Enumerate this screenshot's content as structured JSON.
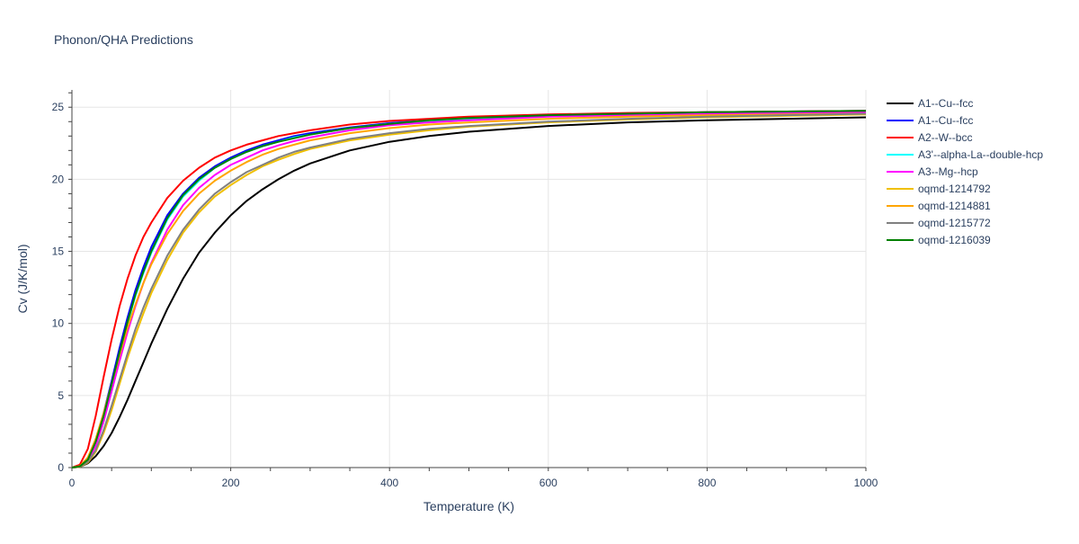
{
  "chart_data": {
    "type": "line",
    "title": "Phonon/QHA Predictions",
    "xlabel": "Temperature (K)",
    "ylabel": "Cv (J/K/mol)",
    "xlim": [
      0,
      1000
    ],
    "ylim": [
      0,
      26.2
    ],
    "x_ticks": [
      0,
      200,
      400,
      600,
      800,
      1000
    ],
    "y_ticks": [
      0,
      5,
      10,
      15,
      20,
      25
    ],
    "grid": true,
    "legend_position": "right",
    "x": [
      0,
      10,
      20,
      30,
      40,
      50,
      60,
      70,
      80,
      90,
      100,
      120,
      140,
      160,
      180,
      200,
      220,
      240,
      260,
      280,
      300,
      350,
      400,
      450,
      500,
      600,
      700,
      800,
      900,
      1000
    ],
    "series": [
      {
        "name": "A1--Cu--fcc",
        "color": "#000000",
        "values": [
          0,
          0.05,
          0.3,
          0.8,
          1.5,
          2.4,
          3.5,
          4.7,
          6.0,
          7.3,
          8.6,
          11.0,
          13.1,
          14.9,
          16.3,
          17.5,
          18.5,
          19.3,
          20.0,
          20.6,
          21.1,
          22.0,
          22.6,
          23.0,
          23.3,
          23.7,
          23.95,
          24.1,
          24.2,
          24.3
        ]
      },
      {
        "name": "A1--Cu--fcc",
        "color": "#0000ff",
        "values": [
          0,
          0.1,
          0.6,
          1.9,
          3.8,
          6.0,
          8.3,
          10.4,
          12.3,
          13.9,
          15.3,
          17.5,
          19.0,
          20.1,
          20.9,
          21.5,
          22.0,
          22.4,
          22.7,
          23.0,
          23.2,
          23.6,
          23.9,
          24.1,
          24.25,
          24.45,
          24.55,
          24.65,
          24.7,
          24.75
        ]
      },
      {
        "name": "A2--W--bcc",
        "color": "#ff0000",
        "values": [
          0,
          0.2,
          1.3,
          3.6,
          6.3,
          8.9,
          11.2,
          13.1,
          14.7,
          16.0,
          17.0,
          18.7,
          19.9,
          20.8,
          21.5,
          22.0,
          22.4,
          22.7,
          23.0,
          23.2,
          23.4,
          23.8,
          24.05,
          24.2,
          24.35,
          24.5,
          24.6,
          24.65,
          24.7,
          24.75
        ]
      },
      {
        "name": "A3'--alpha-La--double-hcp",
        "color": "#00ffff",
        "values": [
          0,
          0.08,
          0.5,
          1.7,
          3.5,
          5.7,
          7.9,
          10.0,
          11.9,
          13.5,
          14.9,
          17.2,
          18.8,
          19.9,
          20.8,
          21.4,
          21.9,
          22.3,
          22.6,
          22.9,
          23.1,
          23.55,
          23.85,
          24.05,
          24.2,
          24.4,
          24.5,
          24.6,
          24.65,
          24.7
        ]
      },
      {
        "name": "A3--Mg--hcp",
        "color": "#ff00ff",
        "values": [
          0,
          0.07,
          0.45,
          1.5,
          3.2,
          5.3,
          7.4,
          9.4,
          11.2,
          12.8,
          14.2,
          16.5,
          18.2,
          19.4,
          20.3,
          21.0,
          21.5,
          22.0,
          22.35,
          22.65,
          22.9,
          23.4,
          23.75,
          23.95,
          24.1,
          24.35,
          24.45,
          24.55,
          24.6,
          24.65
        ]
      },
      {
        "name": "oqmd-1214792",
        "color": "#f0c000",
        "values": [
          0,
          0.05,
          0.35,
          1.1,
          2.4,
          4.0,
          5.8,
          7.6,
          9.2,
          10.7,
          12.1,
          14.4,
          16.3,
          17.7,
          18.8,
          19.6,
          20.3,
          20.9,
          21.35,
          21.75,
          22.1,
          22.7,
          23.1,
          23.4,
          23.65,
          23.95,
          24.15,
          24.3,
          24.4,
          24.5
        ]
      },
      {
        "name": "oqmd-1214881",
        "color": "#ffa500",
        "values": [
          0,
          0.1,
          0.7,
          2.0,
          3.8,
          5.8,
          7.8,
          9.7,
          11.3,
          12.8,
          14.1,
          16.2,
          17.8,
          19.0,
          19.9,
          20.6,
          21.2,
          21.7,
          22.1,
          22.4,
          22.7,
          23.2,
          23.55,
          23.8,
          23.95,
          24.2,
          24.35,
          24.45,
          24.5,
          24.55
        ]
      },
      {
        "name": "oqmd-1215772",
        "color": "#808080",
        "values": [
          0,
          0.06,
          0.4,
          1.2,
          2.6,
          4.3,
          6.1,
          7.9,
          9.6,
          11.1,
          12.4,
          14.7,
          16.5,
          17.9,
          19.0,
          19.8,
          20.5,
          21.0,
          21.5,
          21.9,
          22.2,
          22.8,
          23.2,
          23.5,
          23.7,
          24.0,
          24.2,
          24.35,
          24.45,
          24.55
        ]
      },
      {
        "name": "oqmd-1216039",
        "color": "#008000",
        "values": [
          0,
          0.09,
          0.55,
          1.8,
          3.6,
          5.8,
          8.0,
          10.1,
          12.0,
          13.6,
          15.0,
          17.3,
          18.9,
          20.0,
          20.8,
          21.4,
          21.9,
          22.3,
          22.6,
          22.85,
          23.1,
          23.55,
          23.85,
          24.1,
          24.25,
          24.45,
          24.55,
          24.65,
          24.7,
          24.75
        ]
      }
    ]
  }
}
